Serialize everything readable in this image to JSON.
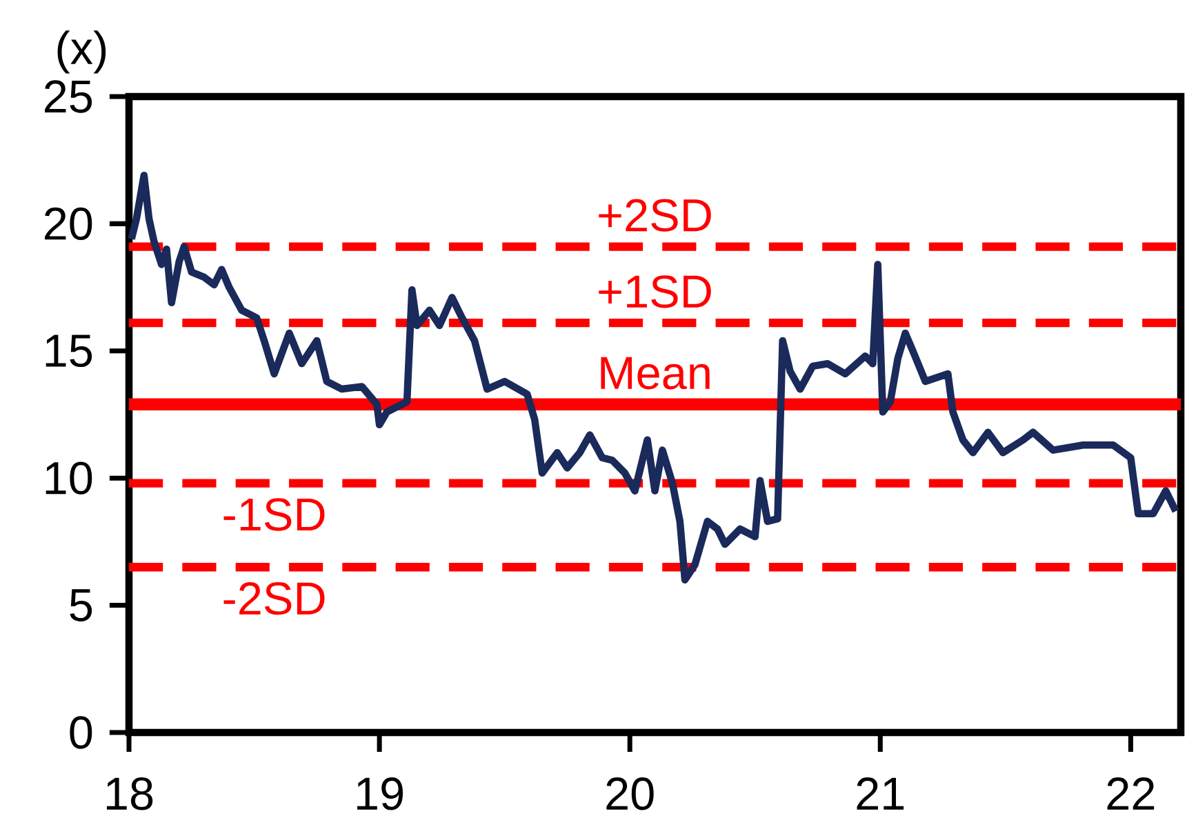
{
  "chart_data": {
    "type": "line",
    "ylabel": "(x)",
    "x": [
      18.01,
      18.03,
      18.06,
      18.08,
      18.1,
      18.13,
      18.15,
      18.17,
      18.2,
      18.22,
      18.25,
      18.3,
      18.34,
      18.37,
      18.4,
      18.45,
      18.51,
      18.54,
      18.58,
      18.64,
      18.69,
      18.75,
      18.79,
      18.85,
      18.93,
      18.99,
      19.0,
      19.03,
      19.11,
      19.13,
      19.15,
      19.2,
      19.24,
      19.29,
      19.33,
      19.38,
      19.43,
      19.5,
      19.59,
      19.62,
      19.65,
      19.71,
      19.75,
      19.8,
      19.84,
      19.89,
      19.93,
      19.98,
      20.02,
      20.07,
      20.1,
      20.13,
      20.17,
      20.2,
      20.22,
      20.26,
      20.31,
      20.35,
      20.38,
      20.44,
      20.5,
      20.52,
      20.55,
      20.59,
      20.61,
      20.64,
      20.68,
      20.73,
      20.79,
      20.86,
      20.94,
      20.97,
      20.99,
      21.01,
      21.04,
      21.07,
      21.1,
      21.13,
      21.18,
      21.27,
      21.29,
      21.33,
      21.37,
      21.43,
      21.49,
      21.57,
      21.61,
      21.69,
      21.81,
      21.93,
      22.0,
      22.03,
      22.09,
      22.14,
      22.18
    ],
    "series": [
      {
        "color": "#1a2a5a",
        "values": [
          19.4,
          20.2,
          21.9,
          20.2,
          19.3,
          18.4,
          19.0,
          16.9,
          18.5,
          19.1,
          18.1,
          17.9,
          17.6,
          18.2,
          17.5,
          16.6,
          16.3,
          15.4,
          14.1,
          15.7,
          14.5,
          15.4,
          13.8,
          13.5,
          13.6,
          12.9,
          12.1,
          12.6,
          13.0,
          17.4,
          16.0,
          16.6,
          16.0,
          17.1,
          16.3,
          15.4,
          13.5,
          13.8,
          13.3,
          12.3,
          10.2,
          11.0,
          10.4,
          11.0,
          11.7,
          10.8,
          10.7,
          10.2,
          9.5,
          11.5,
          9.5,
          11.1,
          9.8,
          8.3,
          6.0,
          6.6,
          8.3,
          8.0,
          7.4,
          8.0,
          7.7,
          9.9,
          8.3,
          8.4,
          15.4,
          14.2,
          13.5,
          14.4,
          14.5,
          14.1,
          14.8,
          14.5,
          18.4,
          12.6,
          13.0,
          14.7,
          15.7,
          15.0,
          13.8,
          14.1,
          12.6,
          11.5,
          11.0,
          11.8,
          11.0,
          11.5,
          11.8,
          11.1,
          11.3,
          11.3,
          10.8,
          8.6,
          8.6,
          9.5,
          8.7
        ]
      }
    ],
    "xlim": [
      18,
      22.2
    ],
    "ylim": [
      0,
      25
    ],
    "xticks": [
      18,
      19,
      20,
      21,
      22
    ],
    "yticks": [
      0,
      5,
      10,
      15,
      20,
      25
    ],
    "ref_lines": [
      {
        "axis": "y",
        "value": 19.1,
        "label": "+2SD",
        "color": "#ff0000",
        "line_style": "dashed"
      },
      {
        "axis": "y",
        "value": 16.1,
        "label": "+1SD",
        "color": "#ff0000",
        "line_style": "dashed"
      },
      {
        "axis": "y",
        "value": 12.9,
        "label": "Mean",
        "color": "#ff0000",
        "line_style": "solid"
      },
      {
        "axis": "y",
        "value": 9.8,
        "label": "-1SD",
        "color": "#ff0000",
        "line_style": "dashed"
      },
      {
        "axis": "y",
        "value": 6.5,
        "label": "-2SD",
        "color": "#ff0000",
        "line_style": "dashed"
      }
    ],
    "marker": "none",
    "line_style": "solid"
  }
}
